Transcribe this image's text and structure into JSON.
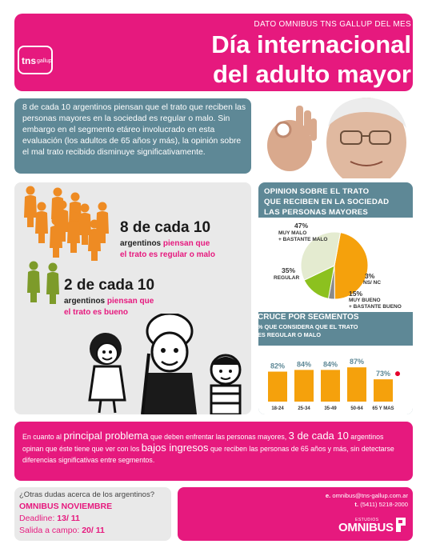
{
  "header": {
    "kicker": "DATO OMNIBUS TNS GALLUP DEL MES",
    "title_line1": "Día internacional",
    "title_line2": "del adulto mayor",
    "logo_tns": "tns",
    "logo_gallup": "gallup"
  },
  "intro": {
    "text": "8 de cada 10 argentinos piensan que el trato que reciben las personas mayores en la sociedad es regular o malo. Sin embargo en el segmento etáreo involucrado en esta evaluación (los adultos de 65 años y más), la opinión sobre el mal trato recibido disminuye significativamente."
  },
  "stats": {
    "stat1_big": "8 de cada 10",
    "stat1_w1": "argentinos",
    "stat1_w2": "piensan que",
    "stat1_line2": "el trato es regular o malo",
    "stat2_big": "2 de cada 10",
    "stat2_w1": "argentinos",
    "stat2_w2": "piensan que",
    "stat2_line2": "el trato es bueno"
  },
  "opinion": {
    "title_l1": "OPINION SOBRE EL TRATO",
    "title_l2": "QUE RECIBEN EN LA SOCIEDAD",
    "title_l3": "LAS PERSONAS MAYORES",
    "slices": [
      {
        "pct": "47%",
        "label1": "MUY MALO",
        "label2": "+ BASTANTE MALO",
        "value": 47,
        "color": "#f5a10c"
      },
      {
        "pct": "3%",
        "label1": "NS/ NC",
        "label2": "",
        "value": 3,
        "color": "#8a8a8a"
      },
      {
        "pct": "15%",
        "label1": "MUY BUENO",
        "label2": "+ BASTANTE BUENO",
        "value": 15,
        "color": "#8cc11f"
      },
      {
        "pct": "35%",
        "label1": "REGULAR",
        "label2": "",
        "value": 35,
        "color": "#e4ebd0"
      }
    ]
  },
  "segments": {
    "title": "CRUCE POR SEGMENTOS",
    "sub_l1": "% QUE CONSIDERA QUE EL TRATO",
    "sub_l2": "ES REGULAR O MALO"
  },
  "chart_data": {
    "type": "bar",
    "categories": [
      "18-24",
      "25-34",
      "35-49",
      "50-64",
      "65 Y MAS"
    ],
    "values": [
      82,
      84,
      84,
      87,
      73
    ],
    "value_labels": [
      "82%",
      "84%",
      "84%",
      "87%",
      "73%"
    ],
    "ylim": [
      0,
      100
    ],
    "bar_color": "#f5a10c",
    "highlight_index": 4,
    "highlight_color": "#e6002a"
  },
  "bottom": {
    "p1": "En cuanto al ",
    "p1_hl": "principal problema",
    "p2": " que deben enfrentar las personas mayores, ",
    "p2_hl": "3 de cada 10",
    "p3": " argentinos opinan que éste tiene que ver con los ",
    "p3_hl": "bajos ingresos",
    "p4": " que reciben las personas de 65 años y más, sin detectarse diferencias significativas entre segmentos."
  },
  "footer": {
    "question": "¿Otras dudas acerca de los argentinos?",
    "omnibus": "OMNIBUS NOVIEMBRE",
    "deadline_label": "Deadline: ",
    "deadline_value": "13/ 11",
    "salida_label": "Salida a campo: ",
    "salida_value": "20/ 11",
    "email_key": "e.",
    "email": "omnibus@tns-gallup.com.ar",
    "phone_key": "t.",
    "phone": "(5411) 5218-2000",
    "brand_small": "ESTUDIOS",
    "brand": "OMNIBUS"
  },
  "colors": {
    "magenta": "#e6197e",
    "teal": "#5e8896",
    "orange": "#f5a10c",
    "green": "#8cc11f"
  }
}
